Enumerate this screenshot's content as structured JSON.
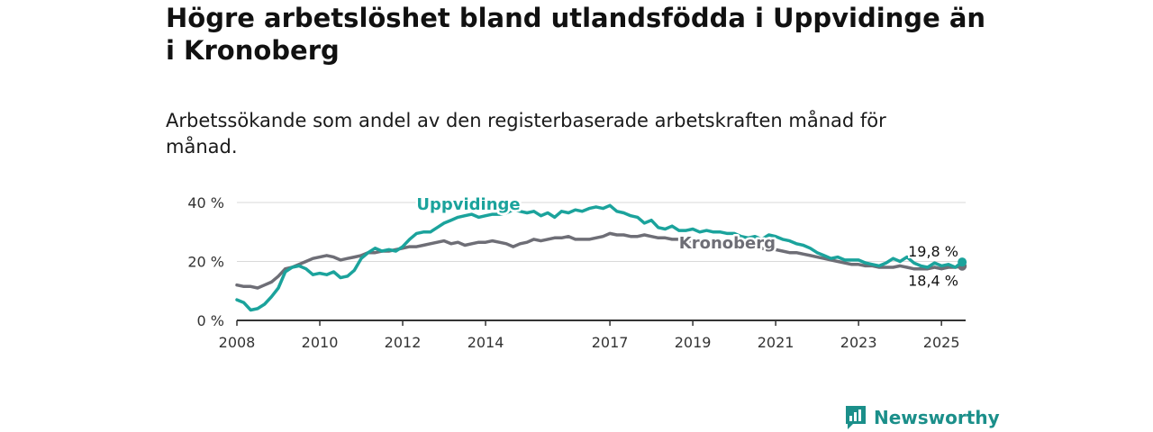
{
  "title": "Högre arbetslöshet bland utlandsfödda i Uppvidinge än i Kronoberg",
  "subtitle": "Arbetssökande som andel av den registerbaserade arbetskraften månad för månad.",
  "brand": {
    "name": "Newsworthy",
    "icon": "newsworthy-logo-icon"
  },
  "colors": {
    "Uppvidinge": "#1ba39c",
    "Kronoberg": "#6e6e76",
    "grid": "#d9d9d9",
    "axis": "#333333"
  },
  "chart_data": {
    "type": "line",
    "xlabel": "",
    "ylabel": "",
    "ylim": [
      0,
      40
    ],
    "xlim": [
      "2008-01",
      "2025-08"
    ],
    "y_ticks": [
      "0 %",
      "20 %",
      "40 %"
    ],
    "x_ticks": [
      "2008",
      "2010",
      "2012",
      "2014",
      "2017",
      "2019",
      "2021",
      "2023",
      "2025"
    ],
    "grid": true,
    "legend": "direct labels on lines",
    "series": [
      {
        "name": "Uppvidinge",
        "end_label": "19,8 %",
        "points": [
          [
            "2008-01",
            7.0
          ],
          [
            "2008-03",
            6.0
          ],
          [
            "2008-05",
            3.5
          ],
          [
            "2008-07",
            4.0
          ],
          [
            "2008-09",
            5.5
          ],
          [
            "2008-11",
            8.0
          ],
          [
            "2009-01",
            11.0
          ],
          [
            "2009-03",
            16.5
          ],
          [
            "2009-05",
            18.0
          ],
          [
            "2009-07",
            18.5
          ],
          [
            "2009-09",
            17.5
          ],
          [
            "2009-11",
            15.5
          ],
          [
            "2010-01",
            16.0
          ],
          [
            "2010-03",
            15.5
          ],
          [
            "2010-05",
            16.5
          ],
          [
            "2010-07",
            14.5
          ],
          [
            "2010-09",
            15.0
          ],
          [
            "2010-11",
            17.0
          ],
          [
            "2011-01",
            21.0
          ],
          [
            "2011-03",
            23.0
          ],
          [
            "2011-05",
            24.5
          ],
          [
            "2011-07",
            23.5
          ],
          [
            "2011-09",
            24.0
          ],
          [
            "2011-11",
            23.5
          ],
          [
            "2012-01",
            25.0
          ],
          [
            "2012-03",
            27.5
          ],
          [
            "2012-05",
            29.5
          ],
          [
            "2012-07",
            30.0
          ],
          [
            "2012-09",
            30.0
          ],
          [
            "2012-11",
            31.5
          ],
          [
            "2013-01",
            33.0
          ],
          [
            "2013-03",
            34.0
          ],
          [
            "2013-05",
            35.0
          ],
          [
            "2013-07",
            35.5
          ],
          [
            "2013-09",
            36.0
          ],
          [
            "2013-11",
            35.0
          ],
          [
            "2014-01",
            35.5
          ],
          [
            "2014-03",
            36.0
          ],
          [
            "2014-05",
            36.0
          ],
          [
            "2014-07",
            36.5
          ],
          [
            "2014-09",
            37.5
          ],
          [
            "2014-11",
            37.0
          ],
          [
            "2015-01",
            36.5
          ],
          [
            "2015-03",
            37.0
          ],
          [
            "2015-05",
            35.5
          ],
          [
            "2015-07",
            36.5
          ],
          [
            "2015-09",
            35.0
          ],
          [
            "2015-11",
            37.0
          ],
          [
            "2016-01",
            36.5
          ],
          [
            "2016-03",
            37.5
          ],
          [
            "2016-05",
            37.0
          ],
          [
            "2016-07",
            38.0
          ],
          [
            "2016-09",
            38.5
          ],
          [
            "2016-11",
            38.0
          ],
          [
            "2017-01",
            39.0
          ],
          [
            "2017-03",
            37.0
          ],
          [
            "2017-05",
            36.5
          ],
          [
            "2017-07",
            35.5
          ],
          [
            "2017-09",
            35.0
          ],
          [
            "2017-11",
            33.0
          ],
          [
            "2018-01",
            34.0
          ],
          [
            "2018-03",
            31.5
          ],
          [
            "2018-05",
            31.0
          ],
          [
            "2018-07",
            32.0
          ],
          [
            "2018-09",
            30.5
          ],
          [
            "2018-11",
            30.5
          ],
          [
            "2019-01",
            31.0
          ],
          [
            "2019-03",
            30.0
          ],
          [
            "2019-05",
            30.5
          ],
          [
            "2019-07",
            30.0
          ],
          [
            "2019-09",
            30.0
          ],
          [
            "2019-11",
            29.5
          ],
          [
            "2020-01",
            29.5
          ],
          [
            "2020-03",
            28.5
          ],
          [
            "2020-05",
            28.0
          ],
          [
            "2020-07",
            28.5
          ],
          [
            "2020-09",
            27.5
          ],
          [
            "2020-11",
            29.0
          ],
          [
            "2021-01",
            28.5
          ],
          [
            "2021-03",
            27.5
          ],
          [
            "2021-05",
            27.0
          ],
          [
            "2021-07",
            26.0
          ],
          [
            "2021-09",
            25.5
          ],
          [
            "2021-11",
            24.5
          ],
          [
            "2022-01",
            23.0
          ],
          [
            "2022-03",
            22.0
          ],
          [
            "2022-05",
            21.0
          ],
          [
            "2022-07",
            21.5
          ],
          [
            "2022-09",
            20.5
          ],
          [
            "2022-11",
            20.5
          ],
          [
            "2023-01",
            20.5
          ],
          [
            "2023-03",
            19.5
          ],
          [
            "2023-05",
            19.0
          ],
          [
            "2023-07",
            18.5
          ],
          [
            "2023-09",
            19.5
          ],
          [
            "2023-11",
            21.0
          ],
          [
            "2024-01",
            20.0
          ],
          [
            "2024-03",
            21.5
          ],
          [
            "2024-05",
            19.5
          ],
          [
            "2024-07",
            18.5
          ],
          [
            "2024-09",
            18.0
          ],
          [
            "2024-11",
            19.5
          ],
          [
            "2025-01",
            18.5
          ],
          [
            "2025-03",
            19.0
          ],
          [
            "2025-05",
            18.0
          ],
          [
            "2025-07",
            19.8
          ]
        ]
      },
      {
        "name": "Kronoberg",
        "end_label": "18,4 %",
        "points": [
          [
            "2008-01",
            12.0
          ],
          [
            "2008-03",
            11.5
          ],
          [
            "2008-05",
            11.5
          ],
          [
            "2008-07",
            11.0
          ],
          [
            "2008-09",
            12.0
          ],
          [
            "2008-11",
            13.0
          ],
          [
            "2009-01",
            15.0
          ],
          [
            "2009-03",
            17.5
          ],
          [
            "2009-05",
            18.0
          ],
          [
            "2009-07",
            19.0
          ],
          [
            "2009-09",
            20.0
          ],
          [
            "2009-11",
            21.0
          ],
          [
            "2010-01",
            21.5
          ],
          [
            "2010-03",
            22.0
          ],
          [
            "2010-05",
            21.5
          ],
          [
            "2010-07",
            20.5
          ],
          [
            "2010-09",
            21.0
          ],
          [
            "2010-11",
            21.5
          ],
          [
            "2011-01",
            22.0
          ],
          [
            "2011-03",
            23.0
          ],
          [
            "2011-05",
            23.0
          ],
          [
            "2011-07",
            23.5
          ],
          [
            "2011-09",
            23.5
          ],
          [
            "2011-11",
            24.0
          ],
          [
            "2012-01",
            24.5
          ],
          [
            "2012-03",
            25.0
          ],
          [
            "2012-05",
            25.0
          ],
          [
            "2012-07",
            25.5
          ],
          [
            "2012-09",
            26.0
          ],
          [
            "2012-11",
            26.5
          ],
          [
            "2013-01",
            27.0
          ],
          [
            "2013-03",
            26.0
          ],
          [
            "2013-05",
            26.5
          ],
          [
            "2013-07",
            25.5
          ],
          [
            "2013-09",
            26.0
          ],
          [
            "2013-11",
            26.5
          ],
          [
            "2014-01",
            26.5
          ],
          [
            "2014-03",
            27.0
          ],
          [
            "2014-05",
            26.5
          ],
          [
            "2014-07",
            26.0
          ],
          [
            "2014-09",
            25.0
          ],
          [
            "2014-11",
            26.0
          ],
          [
            "2015-01",
            26.5
          ],
          [
            "2015-03",
            27.5
          ],
          [
            "2015-05",
            27.0
          ],
          [
            "2015-07",
            27.5
          ],
          [
            "2015-09",
            28.0
          ],
          [
            "2015-11",
            28.0
          ],
          [
            "2016-01",
            28.5
          ],
          [
            "2016-03",
            27.5
          ],
          [
            "2016-05",
            27.5
          ],
          [
            "2016-07",
            27.5
          ],
          [
            "2016-09",
            28.0
          ],
          [
            "2016-11",
            28.5
          ],
          [
            "2017-01",
            29.5
          ],
          [
            "2017-03",
            29.0
          ],
          [
            "2017-05",
            29.0
          ],
          [
            "2017-07",
            28.5
          ],
          [
            "2017-09",
            28.5
          ],
          [
            "2017-11",
            29.0
          ],
          [
            "2018-01",
            28.5
          ],
          [
            "2018-03",
            28.0
          ],
          [
            "2018-05",
            28.0
          ],
          [
            "2018-07",
            27.5
          ],
          [
            "2018-09",
            27.5
          ],
          [
            "2018-11",
            27.0
          ],
          [
            "2019-01",
            27.0
          ],
          [
            "2019-03",
            26.5
          ],
          [
            "2019-05",
            26.5
          ],
          [
            "2019-07",
            26.0
          ],
          [
            "2019-09",
            26.0
          ],
          [
            "2019-11",
            25.5
          ],
          [
            "2020-01",
            25.5
          ],
          [
            "2020-03",
            25.5
          ],
          [
            "2020-05",
            25.0
          ],
          [
            "2020-07",
            25.0
          ],
          [
            "2020-09",
            24.5
          ],
          [
            "2020-11",
            24.0
          ],
          [
            "2021-01",
            24.0
          ],
          [
            "2021-03",
            23.5
          ],
          [
            "2021-05",
            23.0
          ],
          [
            "2021-07",
            23.0
          ],
          [
            "2021-09",
            22.5
          ],
          [
            "2021-11",
            22.0
          ],
          [
            "2022-01",
            21.5
          ],
          [
            "2022-03",
            21.0
          ],
          [
            "2022-05",
            20.5
          ],
          [
            "2022-07",
            20.0
          ],
          [
            "2022-09",
            19.5
          ],
          [
            "2022-11",
            19.0
          ],
          [
            "2023-01",
            19.0
          ],
          [
            "2023-03",
            18.5
          ],
          [
            "2023-05",
            18.5
          ],
          [
            "2023-07",
            18.0
          ],
          [
            "2023-09",
            18.0
          ],
          [
            "2023-11",
            18.0
          ],
          [
            "2024-01",
            18.5
          ],
          [
            "2024-03",
            18.0
          ],
          [
            "2024-05",
            17.5
          ],
          [
            "2024-07",
            17.5
          ],
          [
            "2024-09",
            17.5
          ],
          [
            "2024-11",
            18.0
          ],
          [
            "2025-01",
            17.5
          ],
          [
            "2025-03",
            18.0
          ],
          [
            "2025-05",
            18.0
          ],
          [
            "2025-07",
            18.4
          ]
        ]
      }
    ]
  }
}
